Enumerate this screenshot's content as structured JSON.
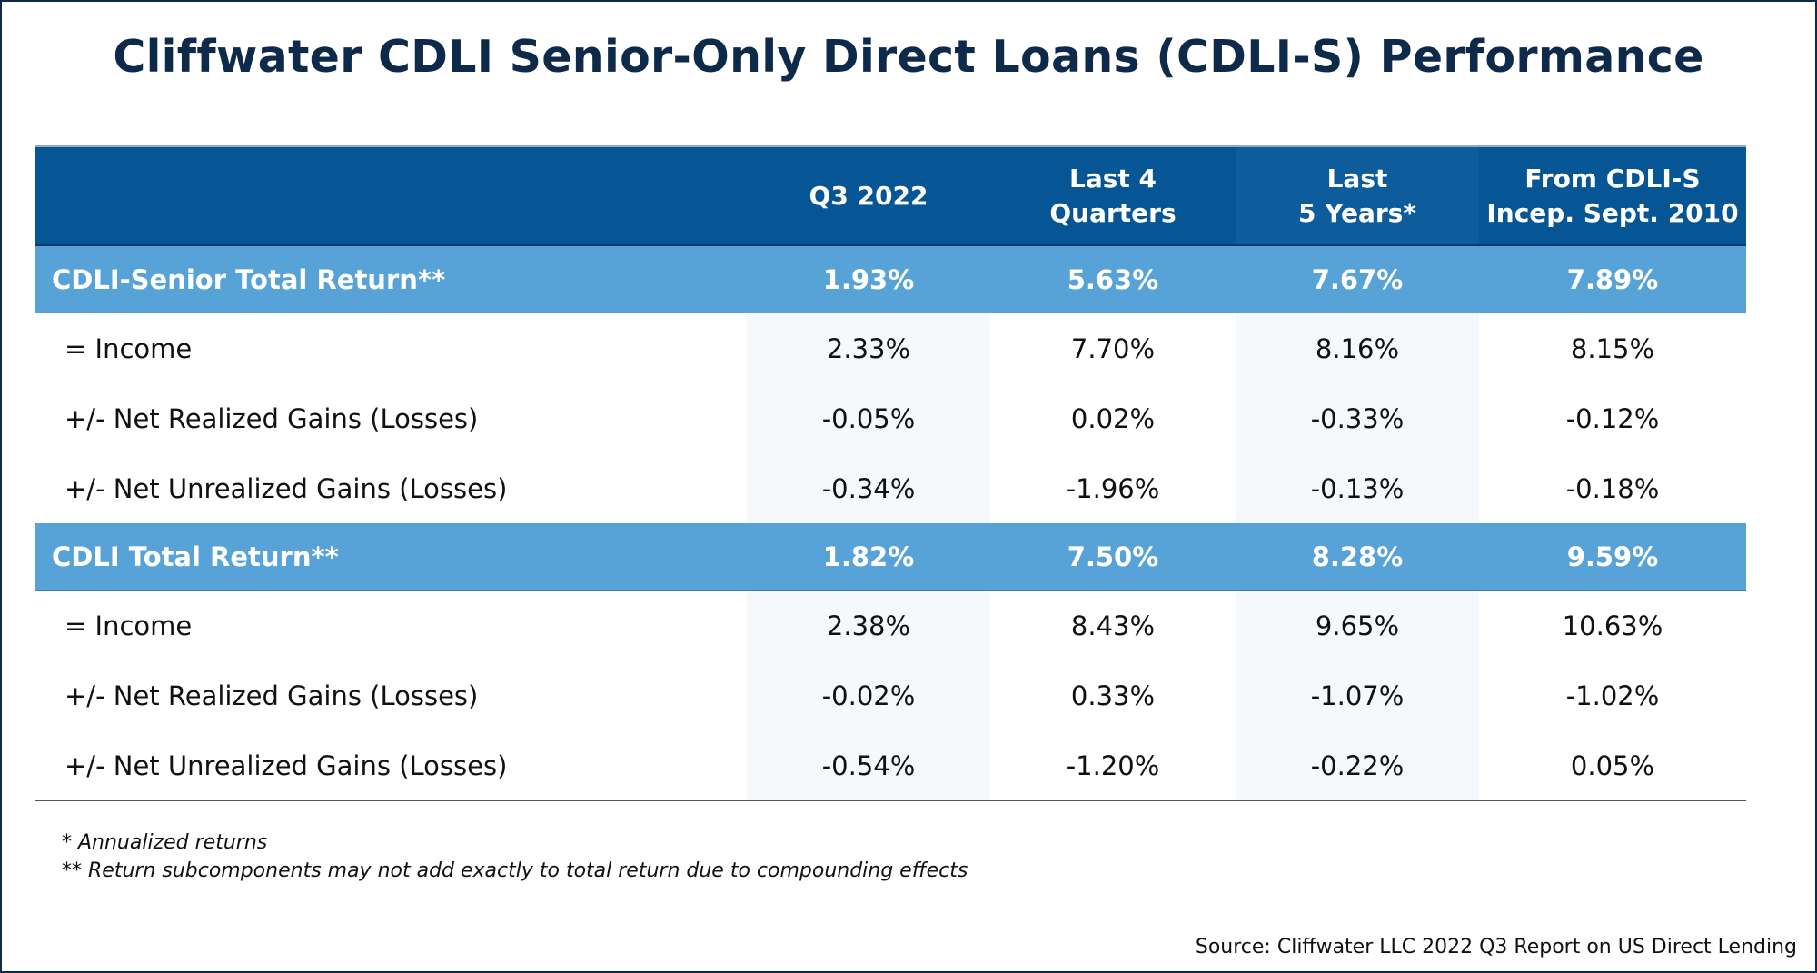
{
  "title": "Cliffwater CDLI Senior-Only Direct Loans (CDLI-S) Performance",
  "colors": {
    "header": "#065594",
    "total_row": "#57a3d8",
    "title": "#0e2a4a"
  },
  "chart_data": {
    "type": "table",
    "columns": [
      "",
      "Q3 2022",
      "Last 4 Quarters",
      "Last 5 Years*",
      "From CDLI-S Incep. Sept. 2010"
    ],
    "column_lines": [
      [
        "",
        ""
      ],
      [
        "Q3 2022",
        ""
      ],
      [
        "Last 4",
        "Quarters"
      ],
      [
        "Last",
        "5 Years*"
      ],
      [
        "From CDLI-S",
        "Incep. Sept. 2010"
      ]
    ],
    "rows": [
      {
        "kind": "total",
        "label": "CDLI-Senior Total Return**",
        "values": [
          "1.93%",
          "5.63%",
          "7.67%",
          "7.89%"
        ]
      },
      {
        "kind": "sub",
        "label": "= Income",
        "values": [
          "2.33%",
          "7.70%",
          "8.16%",
          "8.15%"
        ]
      },
      {
        "kind": "sub",
        "label": "+/- Net Realized Gains (Losses)",
        "values": [
          "-0.05%",
          "0.02%",
          "-0.33%",
          "-0.12%"
        ]
      },
      {
        "kind": "sub",
        "label": "+/- Net Unrealized Gains (Losses)",
        "values": [
          "-0.34%",
          "-1.96%",
          "-0.13%",
          "-0.18%"
        ]
      },
      {
        "kind": "total",
        "label": "CDLI Total Return**",
        "values": [
          "1.82%",
          "7.50%",
          "8.28%",
          "9.59%"
        ]
      },
      {
        "kind": "sub",
        "label": "= Income",
        "values": [
          "2.38%",
          "8.43%",
          "9.65%",
          "10.63%"
        ]
      },
      {
        "kind": "sub",
        "label": "+/- Net Realized Gains (Losses)",
        "values": [
          "-0.02%",
          "0.33%",
          "-1.07%",
          "-1.02%"
        ]
      },
      {
        "kind": "sub",
        "label": "+/- Net Unrealized Gains (Losses)",
        "values": [
          "-0.54%",
          "-1.20%",
          "-0.22%",
          "0.05%"
        ]
      }
    ]
  },
  "notes": [
    "* Annualized returns",
    "** Return subcomponents may not add exactly to total return due to compounding effects"
  ],
  "source": "Source: Cliffwater LLC 2022 Q3 Report on US Direct Lending"
}
